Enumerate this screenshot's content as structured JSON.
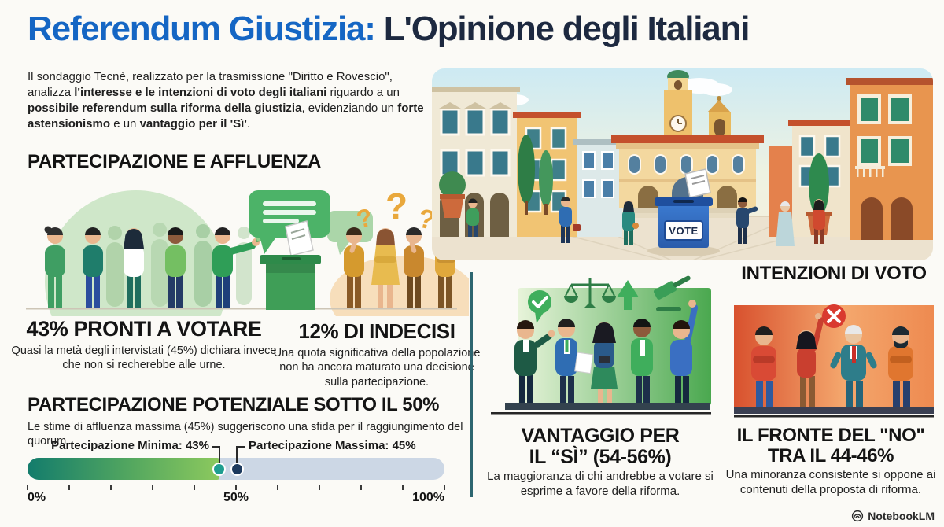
{
  "page": {
    "title_part1": "Referendum Giustizia:",
    "title_part2": " L'Opinione degli Italiani"
  },
  "intro": {
    "segments": [
      {
        "t": "Il sondaggio Tecnè, realizzato per la trasmissione \"Diritto e Rovescio\", analizza ",
        "b": false
      },
      {
        "t": "l'interesse e le intenzioni di voto degli italiani",
        "b": true
      },
      {
        "t": " riguardo a un ",
        "b": false
      },
      {
        "t": "possibile referendum sulla riforma della giustizia",
        "b": true
      },
      {
        "t": ", evidenziando un ",
        "b": false
      },
      {
        "t": "forte astensionismo",
        "b": true
      },
      {
        "t": " e un ",
        "b": false
      },
      {
        "t": "vantaggio per il 'Sì'",
        "b": true
      },
      {
        "t": ".",
        "b": false
      }
    ]
  },
  "participation": {
    "heading": "PARTECIPAZIONE E AFFLUENZA",
    "ready": {
      "title": "43% PRONTI A VOTARE",
      "desc": "Quasi la metà degli intervistati (45%) dichiara invece che non si recherebbe alle urne."
    },
    "undecided": {
      "title": "12% DI INDECISI",
      "desc": "Una quota significativa della popolazione non ha ancora maturato una decisione sulla partecipazione.",
      "question_mark": "?"
    },
    "potential": {
      "title": "PARTECIPAZIONE POTENZIALE SOTTO IL 50%",
      "desc": "Le stime di affluenza massima (45%) suggeriscono una sfida per il raggiungimento del quorum."
    }
  },
  "scale": {
    "min_label": "Partecipazione Minima: 43%",
    "max_label": "Partecipazione Massima: 45%",
    "min_value": 43,
    "max_value": 45,
    "ticks": [
      "0%",
      "50%",
      "100%"
    ],
    "colors": {
      "fill_start": "#137c6c",
      "fill_end": "#8cc95e",
      "track": "#ccd7e5",
      "dot_min": "#1f9e90",
      "dot_max": "#1d3a5e"
    }
  },
  "intentions": {
    "heading": "INTENZIONI DI VOTO",
    "yes": {
      "title_line1": "VANTAGGIO PER",
      "title_line2": "IL “SÌ” (54-56%)",
      "desc": "La maggioranza di chi andrebbe a votare si esprime a favore della riforma."
    },
    "no": {
      "title_line1": "IL FRONTE DEL \"NO\"",
      "title_line2": "TRA IL 44-46%",
      "desc": "Una minoranza consistente si oppone ai contenuti della proposta di riforma."
    }
  },
  "piazza": {
    "vote_label": "VOTE"
  },
  "watermark": {
    "label": "NotebookLM"
  },
  "colors": {
    "title_blue": "#1566c4",
    "title_navy": "#1d2940",
    "green_accent": "#3fae5c",
    "orange_accent": "#e8743f",
    "divider": "#2d6670"
  }
}
